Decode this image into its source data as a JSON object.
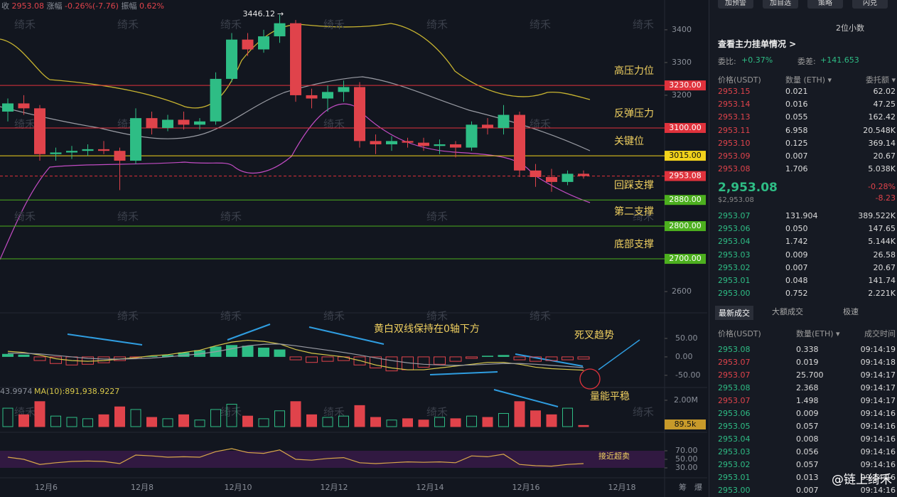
{
  "header": {
    "close_label": "收",
    "close": "2953.08",
    "change_label": "涨幅",
    "change": "-0.26%(-7.76)",
    "amp_label": "振幅",
    "amp": "0.62%"
  },
  "watermark": "绮禾",
  "price_chart": {
    "ylim": [
      2535,
      3491
    ],
    "yticks": [
      3400,
      3300,
      3200,
      2600
    ],
    "peak_label": "3446.12",
    "candles": [
      [
        3150,
        3190,
        3120,
        3175
      ],
      [
        3175,
        3200,
        3140,
        3160
      ],
      [
        3160,
        3170,
        3000,
        3020
      ],
      [
        3020,
        3040,
        3000,
        3025
      ],
      [
        3025,
        3045,
        3005,
        3030
      ],
      [
        3030,
        3050,
        3015,
        3035
      ],
      [
        3035,
        3060,
        3020,
        3030
      ],
      [
        3030,
        3040,
        2910,
        3000
      ],
      [
        3000,
        3160,
        2990,
        3130
      ],
      [
        3130,
        3150,
        3080,
        3100
      ],
      [
        3100,
        3140,
        3090,
        3125
      ],
      [
        3125,
        3150,
        3095,
        3110
      ],
      [
        3110,
        3130,
        3095,
        3120
      ],
      [
        3120,
        3270,
        3110,
        3250
      ],
      [
        3250,
        3390,
        3240,
        3370
      ],
      [
        3370,
        3390,
        3320,
        3340
      ],
      [
        3340,
        3400,
        3330,
        3380
      ],
      [
        3380,
        3446.12,
        3360,
        3420
      ],
      [
        3420,
        3430,
        3180,
        3200
      ],
      [
        3200,
        3220,
        3160,
        3190
      ],
      [
        3190,
        3230,
        3150,
        3210
      ],
      [
        3210,
        3245,
        3180,
        3225
      ],
      [
        3225,
        3240,
        3040,
        3060
      ],
      [
        3060,
        3080,
        3020,
        3050
      ],
      [
        3050,
        3075,
        3030,
        3060
      ],
      [
        3060,
        3070,
        3040,
        3055
      ],
      [
        3055,
        3070,
        3030,
        3045
      ],
      [
        3045,
        3065,
        3020,
        3050
      ],
      [
        3050,
        3060,
        3010,
        3040
      ],
      [
        3040,
        3120,
        3030,
        3110
      ],
      [
        3110,
        3130,
        3080,
        3100
      ],
      [
        3100,
        3170,
        3080,
        3140
      ],
      [
        3140,
        3150,
        2950,
        2970
      ],
      [
        2970,
        2990,
        2920,
        2950
      ],
      [
        2950,
        2975,
        2905,
        2935
      ],
      [
        2935,
        2970,
        2925,
        2960
      ],
      [
        2960,
        2970,
        2945,
        2953.08
      ]
    ],
    "levels": [
      {
        "value": 3230,
        "label": "3230.00",
        "name": "高压力位",
        "color": "#e0323c"
      },
      {
        "value": 3100,
        "label": "3100.00",
        "name": "反弹压力",
        "color": "#e0323c"
      },
      {
        "value": 3015,
        "label": "3015.00",
        "name": "关键位",
        "color": "#f2d21b"
      },
      {
        "value": 2880,
        "label": "2880.00",
        "name": "回踩支撑",
        "color": "#4caf1e"
      },
      {
        "value": 2800,
        "label": "2800.00",
        "name": "第二支撑",
        "color": "#4caf1e"
      },
      {
        "value": 2700,
        "label": "2700.00",
        "name": "底部支撑",
        "color": "#4caf1e"
      }
    ],
    "current": {
      "value": 2953.08,
      "label": "2953.08",
      "color": "#e0323c"
    }
  },
  "dates": [
    "12月6",
    "12月8",
    "12月10",
    "12月12",
    "12月14",
    "12月16",
    "12月18"
  ],
  "axis_extra": [
    "筹",
    "爆"
  ],
  "macd": {
    "ylim": [
      -83,
      100
    ],
    "yticks": [
      {
        "value": 50,
        "label": "50.00"
      },
      {
        "value": 0,
        "label": "0.00"
      },
      {
        "value": -50,
        "label": "-50.00"
      }
    ],
    "values": [
      8,
      6,
      -10,
      -18,
      -22,
      -20,
      -16,
      -10,
      -4,
      2,
      5,
      12,
      18,
      28,
      32,
      30,
      25,
      20,
      -8,
      -15,
      -12,
      -10,
      -22,
      -30,
      -38,
      -35,
      -28,
      -20,
      -12,
      -4,
      3,
      5,
      -8,
      -12,
      -10,
      -8,
      -6
    ],
    "dif": [
      15,
      12,
      5,
      -5,
      -10,
      -12,
      -10,
      -6,
      -2,
      3,
      6,
      12,
      18,
      30,
      40,
      45,
      42,
      35,
      20,
      10,
      5,
      0,
      -10,
      -22,
      -30,
      -35,
      -35,
      -30,
      -25,
      -20,
      -15,
      -15,
      -20,
      -28,
      -32,
      -34,
      -36
    ],
    "dea": [
      10,
      10,
      8,
      4,
      0,
      -4,
      -6,
      -6,
      -5,
      -3,
      0,
      4,
      8,
      14,
      22,
      30,
      34,
      35,
      30,
      24,
      18,
      12,
      5,
      -3,
      -10,
      -16,
      -20,
      -22,
      -23,
      -22,
      -20,
      -18,
      -18,
      -20,
      -23,
      -26,
      -29
    ],
    "annotation": "黄白双线保持在0轴下方",
    "annotation2": "死叉趋势"
  },
  "volume": {
    "prefix": "43.9974",
    "ma_label": "MA(10):891,938.9227",
    "ylim": [
      0,
      2970000
    ],
    "yticks": [
      {
        "value": 2000000,
        "label": "2.00M"
      }
    ],
    "values": [
      1400000,
      900000,
      1900000,
      800000,
      700000,
      600000,
      900000,
      1500000,
      1300000,
      700000,
      600000,
      900000,
      500000,
      1300000,
      1700000,
      800000,
      600000,
      1200000,
      1900000,
      900000,
      700000,
      800000,
      1600000,
      700000,
      500000,
      600000,
      500000,
      700000,
      600000,
      800000,
      700000,
      1000000,
      1900000,
      1200000,
      900000,
      1400000,
      89500
    ],
    "current_label": "89.5k",
    "annotation": "量能平稳"
  },
  "rsi": {
    "ylim": [
      10,
      101.7
    ],
    "yticks": [
      {
        "value": 70,
        "label": "70.00"
      },
      {
        "value": 50,
        "label": "50.00"
      },
      {
        "value": 30,
        "label": "30.00"
      }
    ],
    "values": [
      55,
      50,
      38,
      42,
      45,
      46,
      45,
      40,
      60,
      58,
      55,
      56,
      55,
      68,
      75,
      66,
      64,
      72,
      50,
      48,
      52,
      54,
      42,
      40,
      42,
      44,
      43,
      44,
      42,
      58,
      56,
      62,
      38,
      35,
      34,
      38,
      40
    ],
    "annotation": "接近超卖"
  },
  "panel": {
    "buttons": [
      "加预警",
      "加自选",
      "策略",
      "闪兑"
    ],
    "decimals": "2位小数",
    "depth_link": "查看主力挂单情况 >",
    "ratio_label": "委比:",
    "ratio": "+0.37%",
    "diff_label": "委差:",
    "diff": "+141.653",
    "book_headers": [
      "价格(USDT)",
      "数量 (ETH) ▾",
      "委托额 ▾"
    ],
    "asks": [
      [
        "2953.15",
        "0.021",
        "62.02"
      ],
      [
        "2953.14",
        "0.016",
        "47.25"
      ],
      [
        "2953.13",
        "0.055",
        "162.42"
      ],
      [
        "2953.11",
        "6.958",
        "20.548K"
      ],
      [
        "2953.10",
        "0.125",
        "369.14"
      ],
      [
        "2953.09",
        "0.007",
        "20.67"
      ],
      [
        "2953.08",
        "1.706",
        "5.038K"
      ]
    ],
    "mid_price": "2,953.08",
    "mid_usd": "$2,953.08",
    "mid_pct": "-0.28%",
    "mid_chg": "-8.23",
    "bids": [
      [
        "2953.07",
        "131.904",
        "389.522K"
      ],
      [
        "2953.06",
        "0.050",
        "147.65"
      ],
      [
        "2953.04",
        "1.742",
        "5.144K"
      ],
      [
        "2953.03",
        "0.009",
        "26.58"
      ],
      [
        "2953.02",
        "0.007",
        "20.67"
      ],
      [
        "2953.01",
        "0.048",
        "141.74"
      ],
      [
        "2953.00",
        "0.752",
        "2.221K"
      ]
    ],
    "tabs": [
      "最新成交",
      "大额成交",
      "极速"
    ],
    "trade_headers": [
      "价格(USDT)",
      "数量(ETH) ▾",
      "成交时间"
    ],
    "trades": [
      {
        "price": "2953.08",
        "qty": "0.338",
        "time": "09:14:19",
        "color": "#2ebd85"
      },
      {
        "price": "2953.07",
        "qty": "0.019",
        "time": "09:14:18",
        "color": "#e0434b"
      },
      {
        "price": "2953.07",
        "qty": "25.700",
        "time": "09:14:17",
        "color": "#e0434b"
      },
      {
        "price": "2953.08",
        "qty": "2.368",
        "time": "09:14:17",
        "color": "#2ebd85"
      },
      {
        "price": "2953.07",
        "qty": "1.498",
        "time": "09:14:17",
        "color": "#e0434b"
      },
      {
        "price": "2953.06",
        "qty": "0.009",
        "time": "09:14:16",
        "color": "#2ebd85"
      },
      {
        "price": "2953.05",
        "qty": "0.057",
        "time": "09:14:16",
        "color": "#2ebd85"
      },
      {
        "price": "2953.04",
        "qty": "0.008",
        "time": "09:14:16",
        "color": "#2ebd85"
      },
      {
        "price": "2953.03",
        "qty": "0.056",
        "time": "09:14:16",
        "color": "#2ebd85"
      },
      {
        "price": "2953.02",
        "qty": "0.057",
        "time": "09:14:16",
        "color": "#2ebd85"
      },
      {
        "price": "2953.01",
        "qty": "0.013",
        "time": "09:14:16",
        "color": "#2ebd85"
      },
      {
        "price": "2953.00",
        "qty": "0.007",
        "time": "09:14:16",
        "color": "#2ebd85"
      }
    ],
    "brand": "@链上绮禾"
  }
}
